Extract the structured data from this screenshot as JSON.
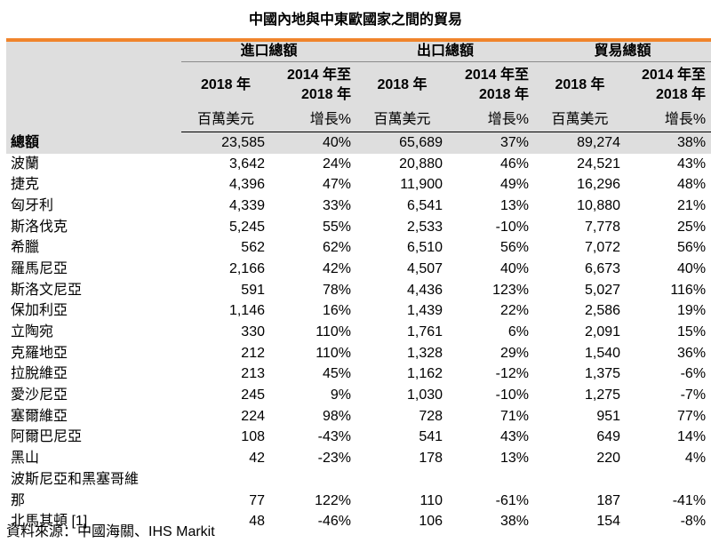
{
  "title": "中國內地與中東歐國家之間的貿易",
  "header": {
    "groups": [
      "進口總額",
      "出口總額",
      "貿易總額"
    ],
    "year": "2018 年",
    "growth": [
      "2014 年至",
      "2018 年"
    ],
    "unit_value": "百萬美元",
    "unit_growth": "增長%"
  },
  "table": {
    "total": {
      "name": "總額",
      "vals": [
        "23,585",
        "40%",
        "65,689",
        "37%",
        "89,274",
        "38%"
      ]
    },
    "rows": [
      {
        "name": "波蘭",
        "vals": [
          "3,642",
          "24%",
          "20,880",
          "46%",
          "24,521",
          "43%"
        ]
      },
      {
        "name": "捷克",
        "vals": [
          "4,396",
          "47%",
          "11,900",
          "49%",
          "16,296",
          "48%"
        ]
      },
      {
        "name": "匈牙利",
        "vals": [
          "4,339",
          "33%",
          "6,541",
          "13%",
          "10,880",
          "21%"
        ]
      },
      {
        "name": "斯洛伐克",
        "vals": [
          "5,245",
          "55%",
          "2,533",
          "-10%",
          "7,778",
          "25%"
        ]
      },
      {
        "name": "希臘",
        "vals": [
          "562",
          "62%",
          "6,510",
          "56%",
          "7,072",
          "56%"
        ]
      },
      {
        "name": "羅馬尼亞",
        "vals": [
          "2,166",
          "42%",
          "4,507",
          "40%",
          "6,673",
          "40%"
        ]
      },
      {
        "name": "斯洛文尼亞",
        "vals": [
          "591",
          "78%",
          "4,436",
          "123%",
          "5,027",
          "116%"
        ]
      },
      {
        "name": "保加利亞",
        "vals": [
          "1,146",
          "16%",
          "1,439",
          "22%",
          "2,586",
          "19%"
        ]
      },
      {
        "name": "立陶宛",
        "vals": [
          "330",
          "110%",
          "1,761",
          "6%",
          "2,091",
          "15%"
        ]
      },
      {
        "name": "克羅地亞",
        "vals": [
          "212",
          "110%",
          "1,328",
          "29%",
          "1,540",
          "36%"
        ]
      },
      {
        "name": "拉脫維亞",
        "vals": [
          "213",
          "45%",
          "1,162",
          "-12%",
          "1,375",
          "-6%"
        ]
      },
      {
        "name": "愛沙尼亞",
        "vals": [
          "245",
          "9%",
          "1,030",
          "-10%",
          "1,275",
          "-7%"
        ]
      },
      {
        "name": "塞爾維亞",
        "vals": [
          "224",
          "98%",
          "728",
          "71%",
          "951",
          "77%"
        ]
      },
      {
        "name": "阿爾巴尼亞",
        "vals": [
          "108",
          "-43%",
          "541",
          "43%",
          "649",
          "14%"
        ]
      },
      {
        "name": "黑山",
        "vals": [
          "42",
          "-23%",
          "178",
          "13%",
          "220",
          "4%"
        ]
      }
    ],
    "bosnia": {
      "name_line1": "波斯尼亞和黑塞哥維",
      "name_line2": "那",
      "vals": [
        "77",
        "122%",
        "110",
        "-61%",
        "187",
        "-41%"
      ]
    },
    "last": {
      "name": "北馬其頓 [1]",
      "vals": [
        "48",
        "-46%",
        "106",
        "38%",
        "154",
        "-8%"
      ]
    }
  },
  "source": "資料來源：中國海關、IHS Markit"
}
